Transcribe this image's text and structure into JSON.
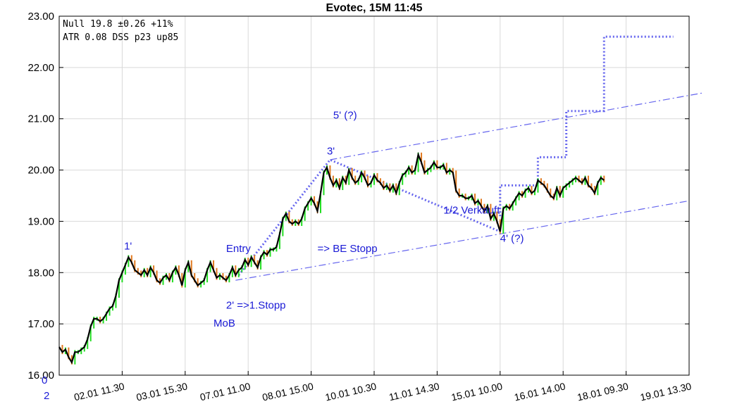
{
  "chart_data": {
    "type": "line",
    "title": "Evotec, 15M 11:45",
    "info_lines": [
      "Null 19.8 ±0.26 +11%",
      "ATR  0.08 DSS p23 up85"
    ],
    "yticks": [
      "16.00",
      "17.00",
      "18.00",
      "19.00",
      "20.00",
      "21.00",
      "22.00",
      "23.00"
    ],
    "ylim": [
      16,
      23
    ],
    "xlim": [
      0,
      10
    ],
    "corner_labels": [
      "0",
      "2"
    ],
    "xticks": [
      {
        "x": 1,
        "label": "02.01 11.30"
      },
      {
        "x": 2,
        "label": "03.01 15.30"
      },
      {
        "x": 3,
        "label": "07.01 11.00"
      },
      {
        "x": 4,
        "label": "08.01 15.00"
      },
      {
        "x": 5,
        "label": "10.01 10.30"
      },
      {
        "x": 6,
        "label": "11.01 14.30"
      },
      {
        "x": 7,
        "label": "15.01 10.00"
      },
      {
        "x": 8,
        "label": "16.01 14.00"
      },
      {
        "x": 9,
        "label": "18.01 09.30"
      },
      {
        "x": 10,
        "label": "19.01 13.30"
      }
    ],
    "price_series": {
      "name": "",
      "color": "#000000",
      "points": [
        [
          0.0,
          16.55
        ],
        [
          0.05,
          16.45
        ],
        [
          0.1,
          16.5
        ],
        [
          0.15,
          16.35
        ],
        [
          0.2,
          16.25
        ],
        [
          0.25,
          16.45
        ],
        [
          0.3,
          16.45
        ],
        [
          0.35,
          16.5
        ],
        [
          0.4,
          16.55
        ],
        [
          0.45,
          16.7
        ],
        [
          0.5,
          16.95
        ],
        [
          0.55,
          17.1
        ],
        [
          0.6,
          17.1
        ],
        [
          0.65,
          17.05
        ],
        [
          0.7,
          17.1
        ],
        [
          0.75,
          17.2
        ],
        [
          0.8,
          17.3
        ],
        [
          0.85,
          17.35
        ],
        [
          0.9,
          17.55
        ],
        [
          0.95,
          17.85
        ],
        [
          1.0,
          18.0
        ],
        [
          1.05,
          18.15
        ],
        [
          1.1,
          18.3
        ],
        [
          1.15,
          18.2
        ],
        [
          1.2,
          18.05
        ],
        [
          1.25,
          18.0
        ],
        [
          1.3,
          17.95
        ],
        [
          1.35,
          18.05
        ],
        [
          1.4,
          17.95
        ],
        [
          1.45,
          18.1
        ],
        [
          1.5,
          18.0
        ],
        [
          1.55,
          17.85
        ],
        [
          1.6,
          17.8
        ],
        [
          1.65,
          17.9
        ],
        [
          1.7,
          17.95
        ],
        [
          1.75,
          17.85
        ],
        [
          1.8,
          18.0
        ],
        [
          1.85,
          18.1
        ],
        [
          1.9,
          17.95
        ],
        [
          1.95,
          17.75
        ],
        [
          2.0,
          18.05
        ],
        [
          2.05,
          18.2
        ],
        [
          2.1,
          17.95
        ],
        [
          2.15,
          17.85
        ],
        [
          2.2,
          17.75
        ],
        [
          2.25,
          17.8
        ],
        [
          2.3,
          17.85
        ],
        [
          2.35,
          18.05
        ],
        [
          2.4,
          18.2
        ],
        [
          2.45,
          18.05
        ],
        [
          2.5,
          17.9
        ],
        [
          2.55,
          17.95
        ],
        [
          2.6,
          17.9
        ],
        [
          2.65,
          17.85
        ],
        [
          2.7,
          17.95
        ],
        [
          2.75,
          18.1
        ],
        [
          2.8,
          17.95
        ],
        [
          2.85,
          18.05
        ],
        [
          2.9,
          18.1
        ],
        [
          2.95,
          18.25
        ],
        [
          3.0,
          18.15
        ],
        [
          3.05,
          18.3
        ],
        [
          3.1,
          18.2
        ],
        [
          3.15,
          18.1
        ],
        [
          3.2,
          18.3
        ],
        [
          3.25,
          18.4
        ],
        [
          3.3,
          18.35
        ],
        [
          3.35,
          18.45
        ],
        [
          3.4,
          18.45
        ],
        [
          3.45,
          18.5
        ],
        [
          3.5,
          18.75
        ],
        [
          3.55,
          19.05
        ],
        [
          3.6,
          19.15
        ],
        [
          3.65,
          19.0
        ],
        [
          3.7,
          18.95
        ],
        [
          3.75,
          19.0
        ],
        [
          3.8,
          18.95
        ],
        [
          3.85,
          19.05
        ],
        [
          3.9,
          19.25
        ],
        [
          3.95,
          19.35
        ],
        [
          4.0,
          19.45
        ],
        [
          4.05,
          19.35
        ],
        [
          4.1,
          19.2
        ],
        [
          4.15,
          19.55
        ],
        [
          4.2,
          19.95
        ],
        [
          4.25,
          20.05
        ],
        [
          4.3,
          19.85
        ],
        [
          4.35,
          19.7
        ],
        [
          4.4,
          19.8
        ],
        [
          4.45,
          19.65
        ],
        [
          4.5,
          19.85
        ],
        [
          4.55,
          19.75
        ],
        [
          4.6,
          20.0
        ],
        [
          4.65,
          19.85
        ],
        [
          4.7,
          19.75
        ],
        [
          4.75,
          19.8
        ],
        [
          4.8,
          19.95
        ],
        [
          4.85,
          19.85
        ],
        [
          4.9,
          19.7
        ],
        [
          4.95,
          19.75
        ],
        [
          5.0,
          19.9
        ],
        [
          5.05,
          19.8
        ],
        [
          5.1,
          19.75
        ],
        [
          5.15,
          19.65
        ],
        [
          5.2,
          19.7
        ],
        [
          5.25,
          19.6
        ],
        [
          5.3,
          19.7
        ],
        [
          5.35,
          19.55
        ],
        [
          5.4,
          19.75
        ],
        [
          5.45,
          19.9
        ],
        [
          5.5,
          19.95
        ],
        [
          5.55,
          20.05
        ],
        [
          5.6,
          19.95
        ],
        [
          5.65,
          20.0
        ],
        [
          5.7,
          20.3
        ],
        [
          5.75,
          20.15
        ],
        [
          5.8,
          19.95
        ],
        [
          5.85,
          20.0
        ],
        [
          5.9,
          20.05
        ],
        [
          5.95,
          20.15
        ],
        [
          6.0,
          20.05
        ],
        [
          6.05,
          20.05
        ],
        [
          6.1,
          20.1
        ],
        [
          6.15,
          19.95
        ],
        [
          6.2,
          20.0
        ],
        [
          6.25,
          19.95
        ],
        [
          6.3,
          19.6
        ],
        [
          6.35,
          19.5
        ],
        [
          6.4,
          19.5
        ],
        [
          6.45,
          19.45
        ],
        [
          6.5,
          19.45
        ],
        [
          6.55,
          19.5
        ],
        [
          6.6,
          19.35
        ],
        [
          6.65,
          19.4
        ],
        [
          6.7,
          19.3
        ],
        [
          6.75,
          19.2
        ],
        [
          6.8,
          19.3
        ],
        [
          6.85,
          19.05
        ],
        [
          6.9,
          19.15
        ],
        [
          6.95,
          19.0
        ],
        [
          7.0,
          18.8
        ],
        [
          7.05,
          19.25
        ],
        [
          7.1,
          19.3
        ],
        [
          7.15,
          19.25
        ],
        [
          7.2,
          19.35
        ],
        [
          7.25,
          19.45
        ],
        [
          7.3,
          19.55
        ],
        [
          7.35,
          19.5
        ],
        [
          7.4,
          19.6
        ],
        [
          7.45,
          19.65
        ],
        [
          7.5,
          19.55
        ],
        [
          7.55,
          19.6
        ],
        [
          7.6,
          19.8
        ],
        [
          7.65,
          19.75
        ],
        [
          7.7,
          19.7
        ],
        [
          7.75,
          19.6
        ],
        [
          7.8,
          19.5
        ],
        [
          7.85,
          19.45
        ],
        [
          7.9,
          19.65
        ],
        [
          7.95,
          19.5
        ],
        [
          8.0,
          19.65
        ],
        [
          8.05,
          19.7
        ],
        [
          8.1,
          19.75
        ],
        [
          8.15,
          19.8
        ],
        [
          8.2,
          19.85
        ],
        [
          8.25,
          19.8
        ],
        [
          8.3,
          19.75
        ],
        [
          8.35,
          19.85
        ],
        [
          8.4,
          19.7
        ],
        [
          8.45,
          19.65
        ],
        [
          8.5,
          19.55
        ],
        [
          8.55,
          19.75
        ],
        [
          8.6,
          19.85
        ],
        [
          8.65,
          19.8
        ]
      ]
    },
    "overlays": [
      {
        "name": "",
        "style": "dashdot",
        "color": "#6666ee",
        "points": [
          [
            2.8,
            17.85
          ],
          [
            10.0,
            19.4
          ]
        ]
      },
      {
        "name": "",
        "style": "dashdot",
        "color": "#6666ee",
        "points": [
          [
            4.3,
            20.2
          ],
          [
            10.2,
            21.5
          ]
        ]
      },
      {
        "name": "",
        "style": "dotted",
        "color": "#6666ee",
        "points": [
          [
            2.85,
            17.95
          ],
          [
            4.3,
            20.2
          ],
          [
            7.0,
            18.8
          ]
        ]
      },
      {
        "name": "",
        "style": "dotted",
        "color": "#6666ee",
        "points": [
          [
            7.0,
            19.1
          ],
          [
            7.0,
            19.7
          ],
          [
            7.6,
            19.7
          ],
          [
            7.6,
            20.25
          ],
          [
            8.05,
            20.25
          ],
          [
            8.05,
            21.15
          ],
          [
            8.65,
            21.15
          ],
          [
            8.65,
            22.6
          ],
          [
            9.75,
            22.6
          ]
        ]
      }
    ],
    "annotations": [
      {
        "text": "1'",
        "x": 1.03,
        "y": 18.45
      },
      {
        "text": "Entry",
        "x": 2.65,
        "y": 18.4
      },
      {
        "text": "=> BE Stopp",
        "x": 4.1,
        "y": 18.4
      },
      {
        "text": "3'",
        "x": 4.25,
        "y": 20.3
      },
      {
        "text": "5' (?)",
        "x": 4.35,
        "y": 21.0
      },
      {
        "text": "1/2 Verkauft",
        "x": 6.1,
        "y": 19.15
      },
      {
        "text": "4' (?)",
        "x": 7.0,
        "y": 18.6
      },
      {
        "text": "2' =>1.Stopp",
        "x": 2.65,
        "y": 17.3
      },
      {
        "text": "MoB",
        "x": 2.45,
        "y": 16.95
      }
    ],
    "grid": true,
    "legend": "none"
  }
}
